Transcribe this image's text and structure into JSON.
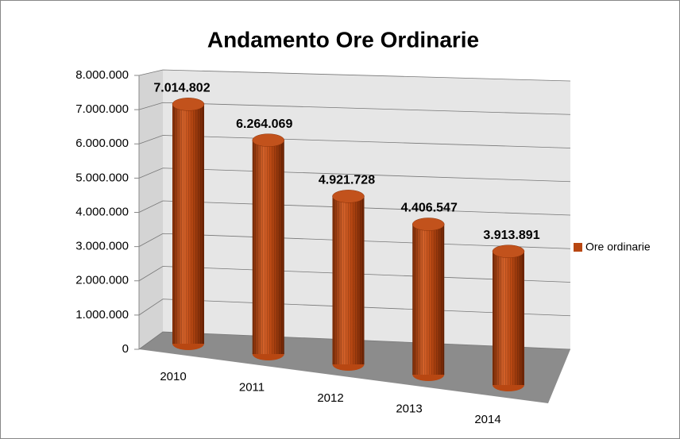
{
  "chart_data": {
    "type": "bar3d",
    "title": "Andamento Ore Ordinarie",
    "categories": [
      "2010",
      "2011",
      "2012",
      "2013",
      "2014"
    ],
    "series": [
      {
        "name": "Ore ordinarie",
        "color": "#b84712",
        "values": [
          7014802,
          6264069,
          4921728,
          4406547,
          3913891
        ],
        "value_labels": [
          "7.014.802",
          "6.264.069",
          "4.921.728",
          "4.406.547",
          "3.913.891"
        ]
      }
    ],
    "ylim": [
      0,
      8000000
    ],
    "yticks": [
      0,
      {
        "value": 1000000,
        "label": "1.000.000"
      },
      {
        "value": 2000000,
        "label": "2.000.000"
      },
      {
        "value": 3000000,
        "label": "3.000.000"
      },
      {
        "value": 4000000,
        "label": "4.000.000"
      },
      {
        "value": 5000000,
        "label": "5.000.000"
      },
      {
        "value": 6000000,
        "label": "6.000.000"
      },
      {
        "value": 7000000,
        "label": "7.000.000"
      },
      {
        "value": 8000000,
        "label": "8.000.000"
      }
    ],
    "grid": true,
    "legend": "right"
  }
}
